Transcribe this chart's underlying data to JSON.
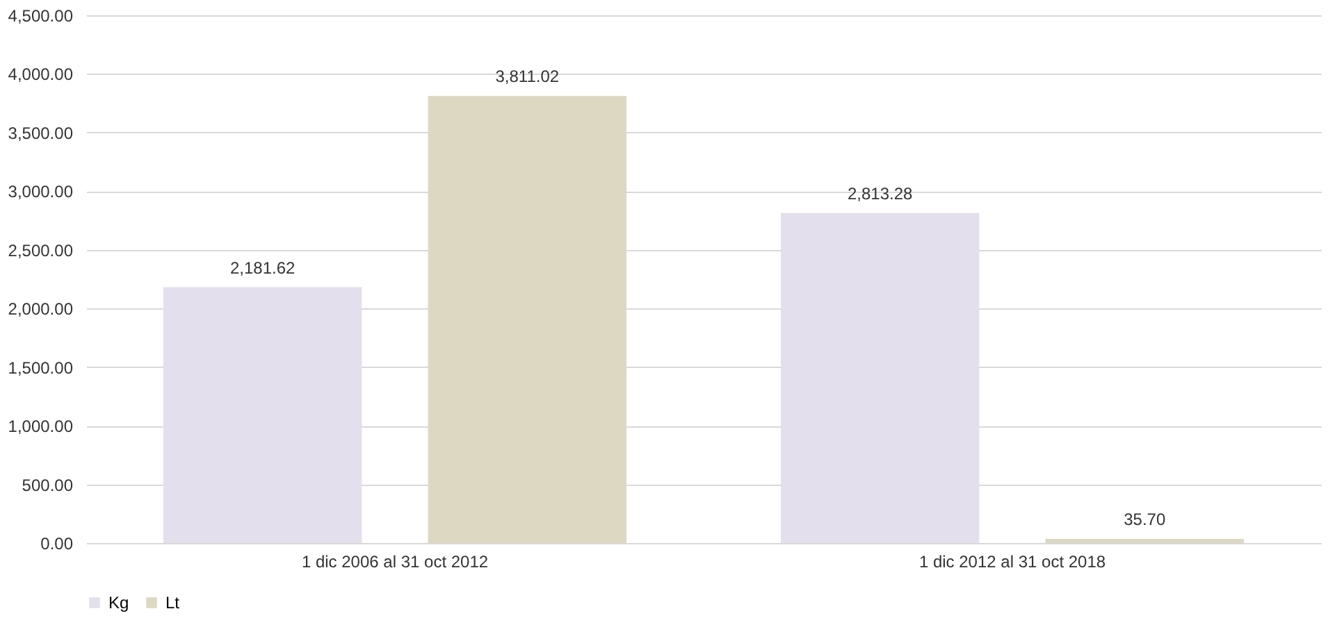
{
  "chart_data": {
    "type": "bar",
    "categories": [
      "1 dic 2006 al 31 oct 2012",
      "1 dic 2012 al 31 oct 2018"
    ],
    "series": [
      {
        "name": "Kg",
        "color": "#e3dfec",
        "values": [
          2181.62,
          2813.28
        ],
        "value_labels": [
          "2,181.62",
          "2,813.28"
        ]
      },
      {
        "name": "Lt",
        "color": "#ddd8c2",
        "values": [
          3811.02,
          35.7
        ],
        "value_labels": [
          "3,811.02",
          "35.70"
        ]
      }
    ],
    "ylim": [
      0,
      4500
    ],
    "yticks": [
      {
        "value": 0,
        "label": "0.00"
      },
      {
        "value": 500,
        "label": "500.00"
      },
      {
        "value": 1000,
        "label": "1,000.00"
      },
      {
        "value": 1500,
        "label": "1,500.00"
      },
      {
        "value": 2000,
        "label": "2,000.00"
      },
      {
        "value": 2500,
        "label": "2,500.00"
      },
      {
        "value": 3000,
        "label": "3,000.00"
      },
      {
        "value": 3500,
        "label": "3,500.00"
      },
      {
        "value": 4000,
        "label": "4,000.00"
      },
      {
        "value": 4500,
        "label": "4,500.00"
      }
    ],
    "grid": "y",
    "legend": "bottom"
  }
}
